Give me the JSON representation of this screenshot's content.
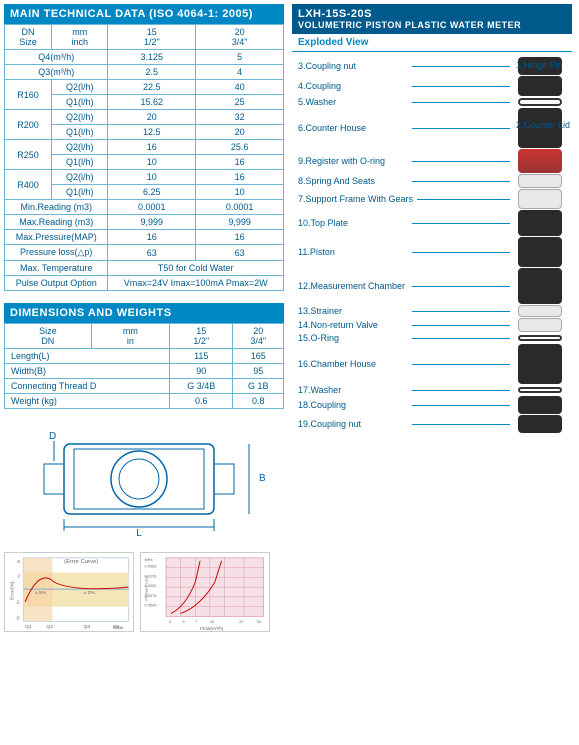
{
  "left": {
    "tech_header": "MAIN TECHNICAL DATA (ISO 4064-1: 2005)",
    "tech_table": {
      "columns": [
        "DN\nSize",
        "mm\ninch",
        "15\n1/2\"",
        "20\n3/4\""
      ],
      "rows": [
        [
          "Q4(m³/h)",
          "",
          "3.125",
          "5"
        ],
        [
          "Q3(m³/h)",
          "",
          "2.5",
          "4"
        ],
        [
          "R160",
          "Q2(l/h)",
          "22.5",
          "40"
        ],
        [
          "",
          "Q1(l/h)",
          "15.62",
          "25"
        ],
        [
          "R200",
          "Q2(l/h)",
          "20",
          "32"
        ],
        [
          "",
          "Q1(l/h)",
          "12.5",
          "20"
        ],
        [
          "R250",
          "Q2(l/h)",
          "16",
          "25.6"
        ],
        [
          "",
          "Q1(l/h)",
          "10",
          "16"
        ],
        [
          "R400",
          "Q2(l/h)",
          "10",
          "16"
        ],
        [
          "",
          "Q1(l/h)",
          "6.25",
          "10"
        ],
        [
          "Min.Reading (m3)",
          "",
          "0.0001",
          "0.0001"
        ],
        [
          "Max.Reading (m3)",
          "",
          "9,999",
          "9,999"
        ],
        [
          "Max.Pressure(MAP)",
          "",
          "16",
          "16"
        ],
        [
          "Pressure loss(△p)",
          "",
          "63",
          "63"
        ],
        [
          "Max. Temperature",
          "",
          "T50 for Cold Water",
          ""
        ],
        [
          "Pulse Output Option",
          "",
          "Vmax=24V  Imax=100mA  Pmax=2W",
          ""
        ]
      ]
    },
    "dim_header": "DIMENSIONS AND WEIGHTS",
    "dim_table": {
      "columns": [
        "Size\nDN",
        "mm\nin",
        "15\n1/2\"",
        "20\n3/4\""
      ],
      "rows": [
        [
          "Length(L)",
          "",
          "115",
          "165"
        ],
        [
          "Width(B)",
          "",
          "90",
          "95"
        ],
        [
          "Connecting Thread D",
          "",
          "G 3/4B",
          "G 1B"
        ],
        [
          "Weight (kg)",
          "",
          "0.6",
          "0.8"
        ]
      ]
    },
    "diagram_labels": {
      "D": "D",
      "B": "B",
      "L": "L"
    },
    "error_chart": {
      "title": "(Error Curve)",
      "ylabel": "Error(%)",
      "xlabel": "Flow",
      "ylim": [
        -5,
        5
      ],
      "yticks": [
        -5,
        -2,
        0,
        2,
        5
      ],
      "annotations": [
        "± 5%",
        "± 2%"
      ],
      "xticks": [
        "Q1",
        "Q2",
        "Q3",
        "Q4"
      ],
      "curve_color": "#cc0000",
      "band_color": "#f5e6b8",
      "grid_color": "#88aacc"
    },
    "pressure_chart": {
      "ylabel": "Pressure Loss",
      "yunit": "MPa",
      "xlabel": "Flow(m³/h)",
      "yticks": [
        "0.0063",
        "0.0126",
        "0.0252",
        "0.0378",
        "0.0504"
      ],
      "xticks": [
        "3",
        "5",
        "7",
        "10",
        "20",
        "30"
      ],
      "curve_colors": [
        "#cc0000",
        "#cc0000"
      ],
      "grid_color": "#cc6688",
      "bg_color": "#f5e0e6"
    }
  },
  "right": {
    "model": "LXH-15S-20S",
    "title": "VOLUMETRIC PISTON  PLASTIC WATER METER",
    "exploded_header": "Exploded View",
    "parts": [
      {
        "num": "3",
        "name": "Coupling nut"
      },
      {
        "num": "4",
        "name": "Coupling"
      },
      {
        "num": "5",
        "name": "Washer"
      },
      {
        "num": "6",
        "name": "Counter House"
      },
      {
        "num": "9",
        "name": "Register with O-ring"
      },
      {
        "num": "8",
        "name": "Spring And Seats"
      },
      {
        "num": "7",
        "name": "Support Frame With Gears"
      },
      {
        "num": "10",
        "name": "Top Plate"
      },
      {
        "num": "11",
        "name": "Piston"
      },
      {
        "num": "12",
        "name": "Measurement Chamber"
      },
      {
        "num": "13",
        "name": "Strainer"
      },
      {
        "num": "14",
        "name": "Non-return Valve"
      },
      {
        "num": "15",
        "name": "O-Ring"
      },
      {
        "num": "16",
        "name": "Chamber House"
      },
      {
        "num": "17",
        "name": "Washer"
      },
      {
        "num": "18",
        "name": "Coupling"
      },
      {
        "num": "19",
        "name": "Coupling nut"
      }
    ],
    "side_parts": [
      {
        "num": "1",
        "name": "Hinge Pin"
      },
      {
        "num": "2",
        "name": "Counter Lid"
      }
    ],
    "colors": {
      "header_bg": "#0088c5",
      "header_dark": "#005a8c",
      "text_blue": "#005a8c",
      "border": "#6bb5d8",
      "part_dark": "#2a2a2a",
      "part_gray": "#888888",
      "part_white": "#e8e8e8"
    }
  }
}
